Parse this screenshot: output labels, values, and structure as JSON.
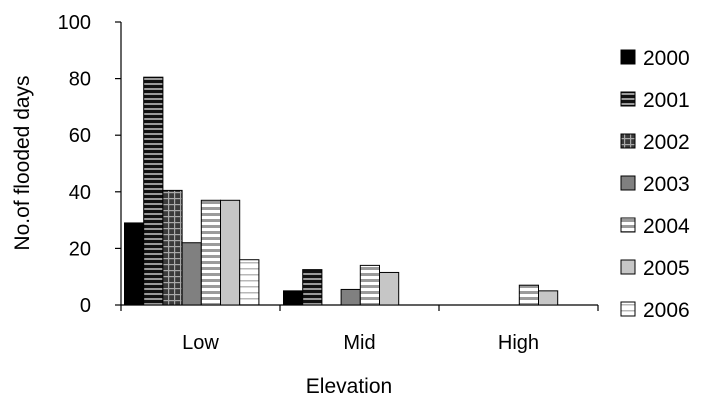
{
  "chart_data": {
    "type": "bar",
    "title": "",
    "xlabel": "Elevation",
    "ylabel": "No.of flooded days",
    "ylim": [
      0,
      100
    ],
    "yticks": [
      0,
      20,
      40,
      60,
      80,
      100
    ],
    "categories": [
      "Low",
      "Mid",
      "High"
    ],
    "grid": false,
    "legend_position": "right",
    "series": [
      {
        "name": "2000",
        "values": [
          29,
          5,
          0
        ],
        "pattern": "solid-black"
      },
      {
        "name": "2001",
        "values": [
          80.5,
          12.5,
          0
        ],
        "pattern": "dark-horizontal-stripes"
      },
      {
        "name": "2002",
        "values": [
          40.5,
          0,
          0
        ],
        "pattern": "dark-grid"
      },
      {
        "name": "2003",
        "values": [
          22,
          5.5,
          0
        ],
        "pattern": "solid-gray"
      },
      {
        "name": "2004",
        "values": [
          37,
          14,
          7
        ],
        "pattern": "light-horizontal-stripes"
      },
      {
        "name": "2005",
        "values": [
          37,
          11.5,
          5
        ],
        "pattern": "light-gray"
      },
      {
        "name": "2006",
        "values": [
          16,
          0,
          0
        ],
        "pattern": "white-horizontal-stripes"
      }
    ]
  }
}
